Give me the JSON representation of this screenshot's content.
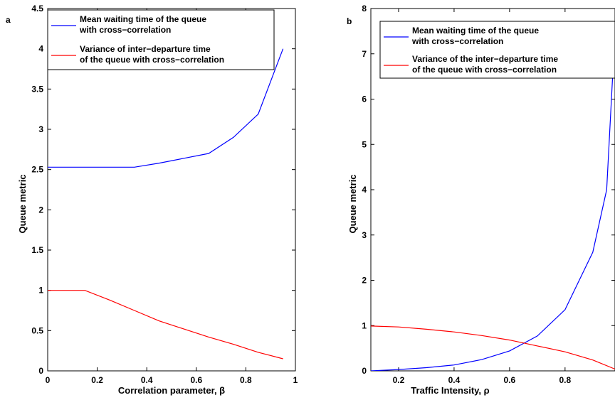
{
  "chart_data": [
    {
      "panel": "a",
      "type": "line",
      "xlabel": "Correlation parameter, β",
      "ylabel": "Queue metric",
      "xlim": [
        0,
        1
      ],
      "ylim": [
        0,
        4.5
      ],
      "xticks": [
        "0",
        "0.2",
        "0.4",
        "0.6",
        "0.8",
        "1"
      ],
      "yticks": [
        "0",
        "0.5",
        "1",
        "1.5",
        "2",
        "2.5",
        "3",
        "3.5",
        "4",
        "4.5"
      ],
      "grid": false,
      "legend_position": "top-right",
      "series": [
        {
          "name": [
            "Mean waiting time of the queue",
            "with cross−correlation"
          ],
          "color": "#0000ff",
          "x": [
            0,
            0.15,
            0.25,
            0.35,
            0.45,
            0.55,
            0.65,
            0.75,
            0.85,
            0.95
          ],
          "y": [
            2.53,
            2.53,
            2.53,
            2.53,
            2.58,
            2.64,
            2.7,
            2.9,
            3.19,
            4.0
          ]
        },
        {
          "name": [
            "Variance of inter−departure time",
            "of the queue with cross−correlation"
          ],
          "color": "#ff0000",
          "x": [
            0,
            0.15,
            0.25,
            0.35,
            0.45,
            0.55,
            0.65,
            0.75,
            0.85,
            0.95
          ],
          "y": [
            1.0,
            1.0,
            0.88,
            0.75,
            0.62,
            0.52,
            0.42,
            0.33,
            0.23,
            0.15
          ]
        }
      ]
    },
    {
      "panel": "b",
      "type": "line",
      "xlabel": "Traffic Intensity, ρ",
      "ylabel": "Queue metric",
      "xlim": [
        0.1,
        0.98
      ],
      "ylim": [
        0,
        8
      ],
      "xticks": [
        "0.2",
        "0.4",
        "0.6",
        "0.8"
      ],
      "yticks": [
        "0",
        "1",
        "2",
        "3",
        "4",
        "5",
        "6",
        "7",
        "8"
      ],
      "grid": false,
      "legend_position": "top-right",
      "series": [
        {
          "name": [
            "Mean waiting time  of the queue",
            "with cross−correlation"
          ],
          "color": "#0000ff",
          "x": [
            0.1,
            0.2,
            0.3,
            0.4,
            0.5,
            0.6,
            0.7,
            0.8,
            0.9,
            0.95,
            0.98
          ],
          "y": [
            0.0,
            0.03,
            0.07,
            0.13,
            0.25,
            0.44,
            0.77,
            1.35,
            2.62,
            4.0,
            7.5
          ]
        },
        {
          "name": [
            "Variance of the inter−departure time",
            "of the queue with cross−correlation"
          ],
          "color": "#ff0000",
          "x": [
            0.1,
            0.2,
            0.3,
            0.4,
            0.5,
            0.6,
            0.7,
            0.8,
            0.9,
            0.98
          ],
          "y": [
            0.99,
            0.97,
            0.92,
            0.86,
            0.78,
            0.68,
            0.55,
            0.42,
            0.24,
            0.04
          ]
        }
      ]
    }
  ]
}
